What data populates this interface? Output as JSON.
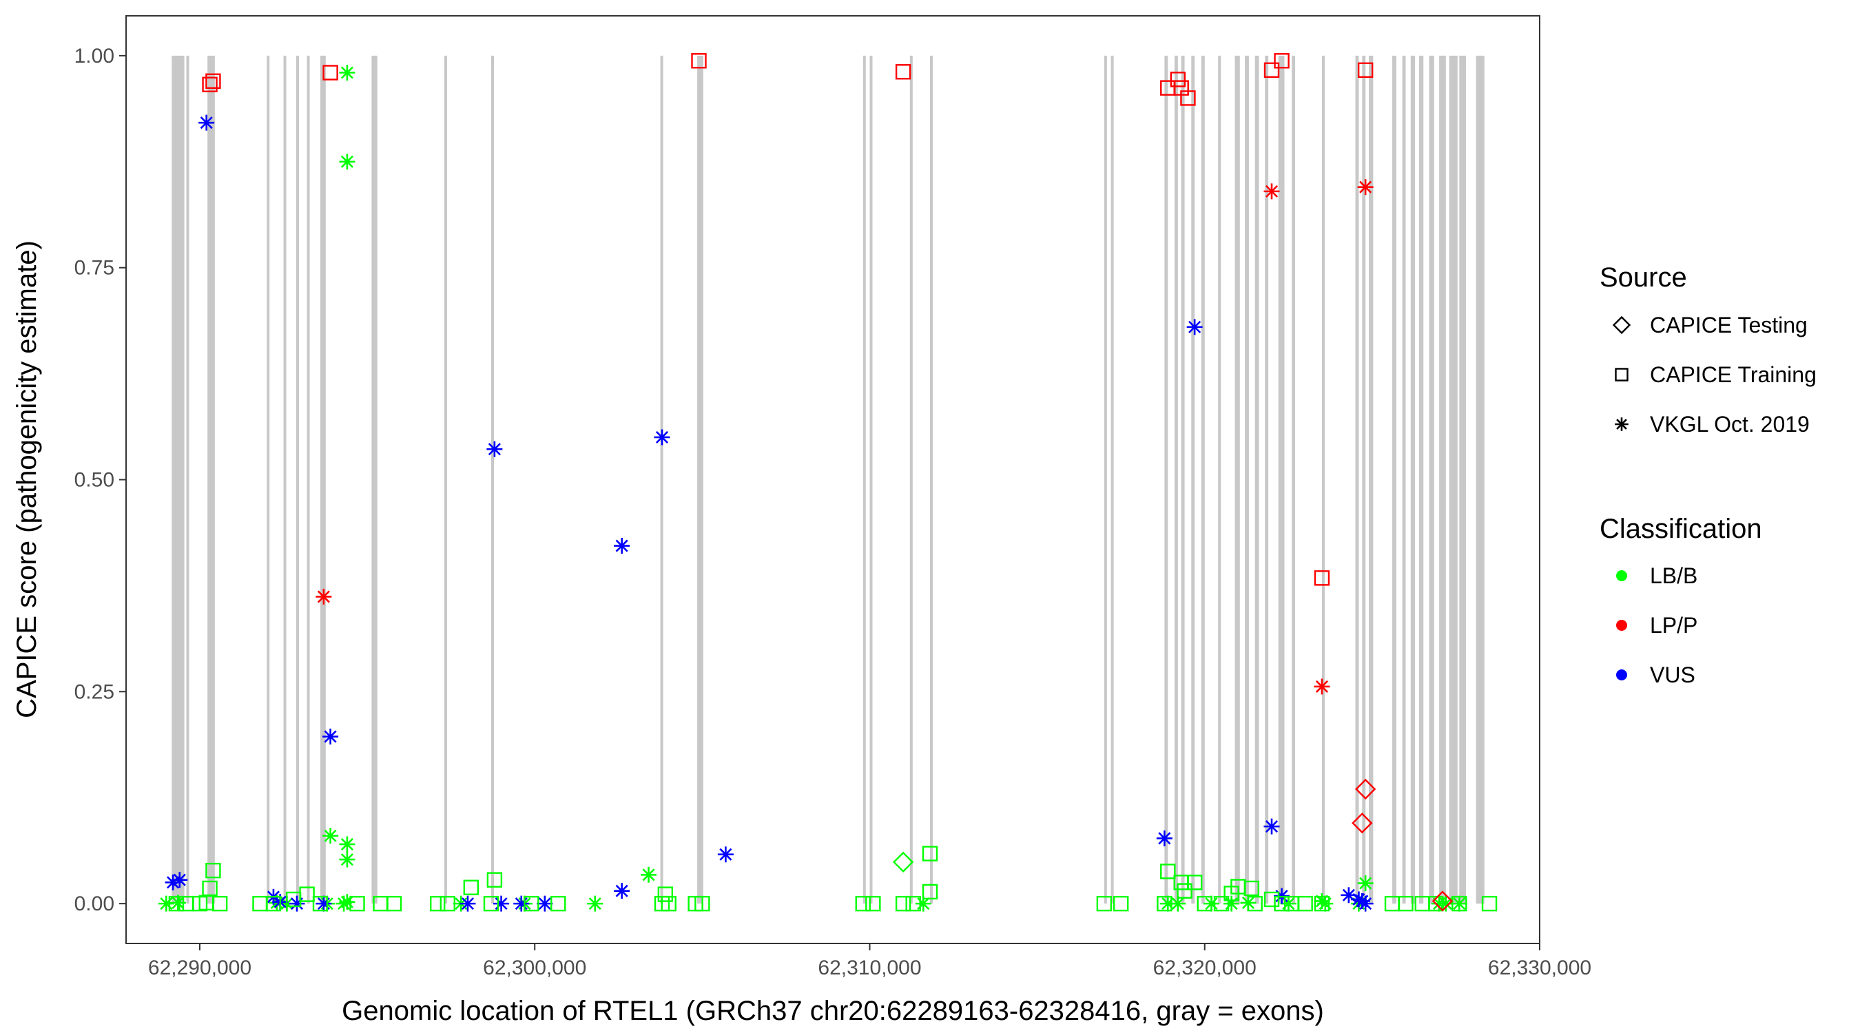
{
  "chart_data": {
    "type": "scatter",
    "xlabel": "Genomic location of RTEL1 (GRCh37 chr20:62289163-62328416, gray = exons)",
    "ylabel": "CAPICE score (pathogenicity estimate)",
    "xlim": [
      62287800,
      62330000
    ],
    "ylim": [
      -0.047,
      1.047
    ],
    "x_ticks": [
      62290000,
      62300000,
      62310000,
      62320000,
      62330000
    ],
    "x_tick_labels": [
      "62,290,000",
      "62,300,000",
      "62,310,000",
      "62,320,000",
      "62,330,000"
    ],
    "y_ticks": [
      0,
      0.25,
      0.5,
      0.75,
      1
    ],
    "y_tick_labels": [
      "0.00",
      "0.25",
      "0.50",
      "0.75",
      "1.00"
    ],
    "grid": false,
    "legend_position": "right",
    "exons": [
      [
        62289163,
        62289540
      ],
      [
        62289600,
        62289680
      ],
      [
        62290230,
        62290450
      ],
      [
        62292000,
        62292060
      ],
      [
        62292500,
        62292560
      ],
      [
        62292880,
        62292960
      ],
      [
        62293200,
        62293280
      ],
      [
        62293600,
        62293760
      ],
      [
        62295130,
        62295300
      ],
      [
        62297300,
        62297360
      ],
      [
        62298700,
        62298780
      ],
      [
        62303750,
        62303830
      ],
      [
        62304850,
        62305030
      ],
      [
        62309800,
        62309870
      ],
      [
        62310000,
        62310060
      ],
      [
        62311200,
        62311270
      ],
      [
        62311800,
        62311870
      ],
      [
        62317000,
        62317060
      ],
      [
        62317200,
        62317260
      ],
      [
        62318800,
        62318900
      ],
      [
        62319100,
        62319200
      ],
      [
        62319300,
        62319400
      ],
      [
        62319600,
        62319700
      ],
      [
        62319900,
        62320000
      ],
      [
        62320400,
        62320480
      ],
      [
        62320900,
        62321050
      ],
      [
        62321200,
        62321320
      ],
      [
        62321500,
        62321620
      ],
      [
        62321800,
        62321900
      ],
      [
        62322200,
        62322380
      ],
      [
        62322600,
        62322700
      ],
      [
        62323500,
        62323580
      ],
      [
        62324500,
        62324600
      ],
      [
        62324700,
        62324800
      ],
      [
        62324900,
        62325030
      ],
      [
        62325600,
        62325720
      ],
      [
        62325900,
        62326000
      ],
      [
        62326150,
        62326280
      ],
      [
        62326400,
        62326530
      ],
      [
        62326700,
        62326850
      ],
      [
        62327000,
        62327200
      ],
      [
        62327300,
        62327550
      ],
      [
        62327600,
        62327800
      ],
      [
        62328100,
        62328350
      ]
    ],
    "series": [
      {
        "source": "VKGL Oct. 2019",
        "classification": "LB/B",
        "points": [
          [
            62289000,
            0.0
          ],
          [
            62289350,
            0.001
          ],
          [
            62292300,
            0.001
          ],
          [
            62292600,
            0.0
          ],
          [
            62293800,
            0.0
          ],
          [
            62294300,
            0.0
          ],
          [
            62294400,
            0.98
          ],
          [
            62294400,
            0.875
          ],
          [
            62293900,
            0.08
          ],
          [
            62294400,
            0.07
          ],
          [
            62294400,
            0.052
          ],
          [
            62294400,
            0.002
          ],
          [
            62297800,
            0.0
          ],
          [
            62299700,
            0.0
          ],
          [
            62301800,
            0.0
          ],
          [
            62303400,
            0.034
          ],
          [
            62311600,
            0.0
          ],
          [
            62318900,
            0.0
          ],
          [
            62319200,
            0.0
          ],
          [
            62320200,
            0.0
          ],
          [
            62320800,
            0.0
          ],
          [
            62321300,
            0.001
          ],
          [
            62322500,
            0.0
          ],
          [
            62323500,
            0.003
          ],
          [
            62323600,
            0.0
          ],
          [
            62324600,
            0.0
          ],
          [
            62324800,
            0.024
          ],
          [
            62327000,
            0.0
          ],
          [
            62327200,
            0.0
          ],
          [
            62327600,
            0.0
          ]
        ]
      },
      {
        "source": "VKGL Oct. 2019",
        "classification": "LP/P",
        "points": [
          [
            62293700,
            0.362
          ],
          [
            62322000,
            0.84
          ],
          [
            62323500,
            0.256
          ],
          [
            62324800,
            0.845
          ]
        ]
      },
      {
        "source": "VKGL Oct. 2019",
        "classification": "VUS",
        "points": [
          [
            62289200,
            0.025
          ],
          [
            62289400,
            0.028
          ],
          [
            62290200,
            0.921
          ],
          [
            62292200,
            0.008
          ],
          [
            62292400,
            0.002
          ],
          [
            62292900,
            0.0
          ],
          [
            62293700,
            0.0
          ],
          [
            62293900,
            0.197
          ],
          [
            62298000,
            0.0
          ],
          [
            62298800,
            0.536
          ],
          [
            62299000,
            0.0
          ],
          [
            62299600,
            0.0
          ],
          [
            62300300,
            0.0
          ],
          [
            62302600,
            0.422
          ],
          [
            62302600,
            0.015
          ],
          [
            62303800,
            0.55
          ],
          [
            62305700,
            0.058
          ],
          [
            62318800,
            0.077
          ],
          [
            62319700,
            0.68
          ],
          [
            62322000,
            0.091
          ],
          [
            62322300,
            0.009
          ],
          [
            62324300,
            0.01
          ],
          [
            62324600,
            0.005
          ],
          [
            62324700,
            0.003
          ],
          [
            62324800,
            0.0
          ]
        ]
      },
      {
        "source": "CAPICE Training",
        "classification": "LB/B",
        "points": [
          [
            62289300,
            0.0
          ],
          [
            62289600,
            0.0
          ],
          [
            62290000,
            0.0
          ],
          [
            62290200,
            0.001
          ],
          [
            62290300,
            0.018
          ],
          [
            62290400,
            0.039
          ],
          [
            62290600,
            0.0
          ],
          [
            62291800,
            0.0
          ],
          [
            62292200,
            0.0
          ],
          [
            62292800,
            0.005
          ],
          [
            62293200,
            0.011
          ],
          [
            62293600,
            0.0
          ],
          [
            62294700,
            0.0
          ],
          [
            62295400,
            0.0
          ],
          [
            62295800,
            0.0
          ],
          [
            62297100,
            0.0
          ],
          [
            62297400,
            0.0
          ],
          [
            62298100,
            0.019
          ],
          [
            62298700,
            0.0
          ],
          [
            62298800,
            0.028
          ],
          [
            62299900,
            0.0
          ],
          [
            62300700,
            0.0
          ],
          [
            62303800,
            0.0
          ],
          [
            62303900,
            0.011
          ],
          [
            62304000,
            0.0
          ],
          [
            62304800,
            0.0
          ],
          [
            62305000,
            0.0
          ],
          [
            62309800,
            0.0
          ],
          [
            62310100,
            0.0
          ],
          [
            62311000,
            0.0
          ],
          [
            62311300,
            0.0
          ],
          [
            62311800,
            0.059
          ],
          [
            62311800,
            0.014
          ],
          [
            62317000,
            0.0
          ],
          [
            62317500,
            0.0
          ],
          [
            62318800,
            0.0
          ],
          [
            62318900,
            0.038
          ],
          [
            62319300,
            0.025
          ],
          [
            62319400,
            0.015
          ],
          [
            62319700,
            0.025
          ],
          [
            62320000,
            0.0
          ],
          [
            62320500,
            0.0
          ],
          [
            62320800,
            0.012
          ],
          [
            62321000,
            0.02
          ],
          [
            62321400,
            0.018
          ],
          [
            62321500,
            0.0
          ],
          [
            62322000,
            0.005
          ],
          [
            62322300,
            0.0
          ],
          [
            62322600,
            0.0
          ],
          [
            62323000,
            0.0
          ],
          [
            62323500,
            0.0
          ],
          [
            62325600,
            0.0
          ],
          [
            62326000,
            0.0
          ],
          [
            62326500,
            0.0
          ],
          [
            62326900,
            0.0
          ],
          [
            62327600,
            0.0
          ],
          [
            62328500,
            0.0
          ]
        ]
      },
      {
        "source": "CAPICE Training",
        "classification": "LP/P",
        "points": [
          [
            62290300,
            0.966
          ],
          [
            62290400,
            0.97
          ],
          [
            62293900,
            0.98
          ],
          [
            62304900,
            0.994
          ],
          [
            62311000,
            0.981
          ],
          [
            62318900,
            0.962
          ],
          [
            62319200,
            0.972
          ],
          [
            62319300,
            0.962
          ],
          [
            62319500,
            0.95
          ],
          [
            62322000,
            0.983
          ],
          [
            62322300,
            0.994
          ],
          [
            62323500,
            0.384
          ],
          [
            62324800,
            0.983
          ]
        ]
      },
      {
        "source": "CAPICE Testing",
        "classification": "LB/B",
        "points": [
          [
            62311000,
            0.049
          ]
        ]
      },
      {
        "source": "CAPICE Testing",
        "classification": "LP/P",
        "points": [
          [
            62324800,
            0.135
          ],
          [
            62324700,
            0.095
          ],
          [
            62327100,
            0.003
          ]
        ]
      }
    ],
    "legend": {
      "source_title": "Source",
      "source_items": [
        {
          "label": "CAPICE Testing",
          "shape": "diamond"
        },
        {
          "label": "CAPICE Training",
          "shape": "square"
        },
        {
          "label": "VKGL Oct. 2019",
          "shape": "asterisk"
        }
      ],
      "class_title": "Classification",
      "class_items": [
        {
          "label": "LB/B",
          "color": "#00ff00"
        },
        {
          "label": "LP/P",
          "color": "#ff0000"
        },
        {
          "label": "VUS",
          "color": "#0000ff"
        }
      ]
    },
    "colors": {
      "LB/B": "#00ff00",
      "LP/P": "#ff0000",
      "VUS": "#0000ff",
      "exon": "#c8c8c8",
      "panel_border": "#333333",
      "axis_text": "#4d4d4d"
    }
  }
}
